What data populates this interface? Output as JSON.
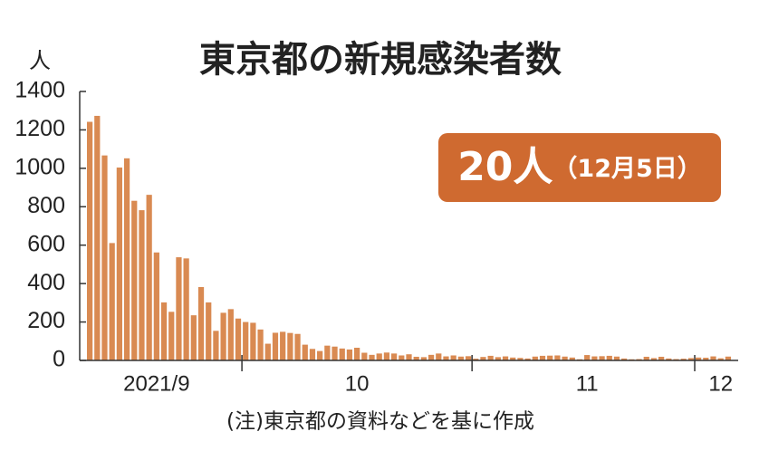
{
  "chart_data": {
    "type": "bar",
    "title": "東京都の新規感染者数",
    "y_unit": "人",
    "note": "(注)東京都の資料などを基に作成",
    "annotation": {
      "main": "20人",
      "sub": "（12月5日）"
    },
    "color": "#d98a52",
    "annotation_color": "#cf6a30",
    "categories": [
      null,
      null,
      null,
      null,
      null,
      null,
      null,
      null,
      null,
      "2021/9",
      null,
      null,
      null,
      null,
      null,
      null,
      null,
      null,
      null,
      null,
      null,
      null,
      null,
      null,
      null,
      null,
      null,
      null,
      null,
      null,
      null,
      null,
      null,
      null,
      null,
      null,
      "10",
      null,
      null,
      null,
      null,
      null,
      null,
      null,
      null,
      null,
      null,
      null,
      null,
      null,
      null,
      null,
      null,
      null,
      null,
      null,
      null,
      null,
      null,
      null,
      null,
      null,
      null,
      null,
      null,
      null,
      null,
      "11",
      null,
      null,
      null,
      null,
      null,
      null,
      null,
      null,
      null,
      null,
      null,
      null,
      null,
      null,
      null,
      null,
      null,
      "12",
      null
    ],
    "values": [
      1242,
      1273,
      1067,
      611,
      1004,
      1052,
      831,
      782,
      862,
      562,
      302,
      253,
      537,
      531,
      235,
      382,
      302,
      154,
      248,
      267,
      218,
      200,
      196,
      161,
      87,
      144,
      149,
      143,
      138,
      82,
      60,
      49,
      77,
      72,
      62,
      57,
      66,
      40,
      29,
      36,
      41,
      36,
      26,
      32,
      19,
      17,
      29,
      36,
      21,
      26,
      20,
      22,
      9,
      18,
      24,
      17,
      21,
      15,
      13,
      10,
      20,
      24,
      25,
      26,
      20,
      15,
      6,
      28,
      21,
      22,
      24,
      20,
      10,
      6,
      7,
      19,
      12,
      19,
      10,
      7,
      9,
      12,
      15,
      14,
      21,
      11,
      20
    ],
    "ylim": [
      0,
      1400
    ],
    "yticks": [
      0,
      200,
      400,
      600,
      800,
      1000,
      1200,
      1400
    ]
  }
}
